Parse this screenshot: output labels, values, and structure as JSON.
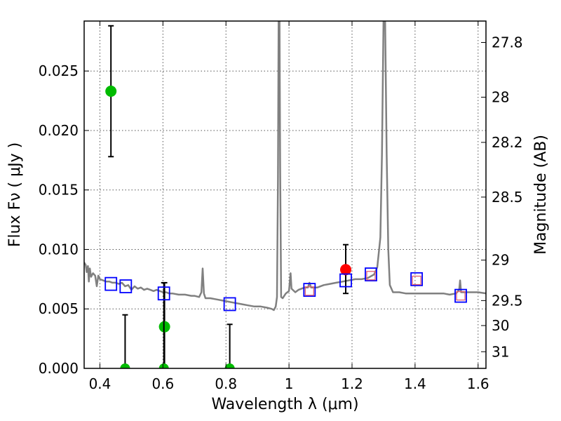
{
  "chart_data": {
    "type": "scatter",
    "xlabel": "Wavelength  λ (μm)",
    "ylabel": "Flux  Fν  ( μJy )",
    "y2label": "Magnitude (AB)",
    "xlim": [
      0.35,
      1.625
    ],
    "ylim": [
      0.0,
      0.0292
    ],
    "grid": true,
    "x_ticks": [
      0.4,
      0.6,
      0.8,
      1.0,
      1.2,
      1.4,
      1.6
    ],
    "x_tick_labels": [
      "0.4",
      "0.6",
      "0.8",
      "1",
      "1.2",
      "1.4",
      "1.6"
    ],
    "y_ticks": [
      0.0,
      0.005,
      0.01,
      0.015,
      0.02,
      0.025
    ],
    "y_tick_labels": [
      "0.000",
      "0.005",
      "0.010",
      "0.015",
      "0.020",
      "0.025"
    ],
    "y2_ticks": [
      {
        "label": "27.8",
        "flux": 0.0274
      },
      {
        "label": "28",
        "flux": 0.0228
      },
      {
        "label": "28.2",
        "flux": 0.019
      },
      {
        "label": "28.5",
        "flux": 0.0144
      },
      {
        "label": "29",
        "flux": 0.0091
      },
      {
        "label": "29.5",
        "flux": 0.0057
      },
      {
        "label": "30",
        "flux": 0.0036
      },
      {
        "label": "31",
        "flux": 0.0014
      }
    ],
    "colors": {
      "model": "#808080",
      "green": "#00bb00",
      "red": "#ff0000",
      "blue": "#0000ff",
      "pink": "#e06070",
      "errorbar": "#000000",
      "grid": "#555555"
    },
    "series": [
      {
        "name": "model spectrum",
        "kind": "line",
        "points": [
          [
            0.35,
            0.0089
          ],
          [
            0.355,
            0.0087
          ],
          [
            0.358,
            0.0081
          ],
          [
            0.362,
            0.0086
          ],
          [
            0.365,
            0.0073
          ],
          [
            0.368,
            0.0084
          ],
          [
            0.372,
            0.0077
          ],
          [
            0.378,
            0.008
          ],
          [
            0.385,
            0.0078
          ],
          [
            0.39,
            0.0069
          ],
          [
            0.395,
            0.0078
          ],
          [
            0.4,
            0.0075
          ],
          [
            0.41,
            0.0074
          ],
          [
            0.42,
            0.0073
          ],
          [
            0.43,
            0.0073
          ],
          [
            0.44,
            0.0072
          ],
          [
            0.45,
            0.0072
          ],
          [
            0.46,
            0.0071
          ],
          [
            0.47,
            0.0072
          ],
          [
            0.48,
            0.0069
          ],
          [
            0.49,
            0.007
          ],
          [
            0.5,
            0.0066
          ],
          [
            0.51,
            0.0069
          ],
          [
            0.52,
            0.0067
          ],
          [
            0.53,
            0.0068
          ],
          [
            0.54,
            0.0066
          ],
          [
            0.55,
            0.0067
          ],
          [
            0.56,
            0.0066
          ],
          [
            0.57,
            0.0065
          ],
          [
            0.58,
            0.0066
          ],
          [
            0.59,
            0.0065
          ],
          [
            0.6,
            0.0064
          ],
          [
            0.61,
            0.0064
          ],
          [
            0.62,
            0.0063
          ],
          [
            0.63,
            0.0063
          ],
          [
            0.65,
            0.0062
          ],
          [
            0.67,
            0.0062
          ],
          [
            0.69,
            0.0061
          ],
          [
            0.7,
            0.0061
          ],
          [
            0.715,
            0.006
          ],
          [
            0.722,
            0.0064
          ],
          [
            0.726,
            0.0084
          ],
          [
            0.73,
            0.0063
          ],
          [
            0.735,
            0.0059
          ],
          [
            0.75,
            0.0059
          ],
          [
            0.77,
            0.0058
          ],
          [
            0.79,
            0.0057
          ],
          [
            0.81,
            0.0056
          ],
          [
            0.83,
            0.0055
          ],
          [
            0.85,
            0.0054
          ],
          [
            0.87,
            0.0053
          ],
          [
            0.89,
            0.0052
          ],
          [
            0.91,
            0.0052
          ],
          [
            0.93,
            0.0051
          ],
          [
            0.945,
            0.005
          ],
          [
            0.952,
            0.0049
          ],
          [
            0.958,
            0.0052
          ],
          [
            0.962,
            0.006
          ],
          [
            0.965,
            0.016
          ],
          [
            0.967,
            0.0292
          ],
          [
            0.97,
            0.0292
          ],
          [
            0.972,
            0.017
          ],
          [
            0.975,
            0.006
          ],
          [
            0.98,
            0.0059
          ],
          [
            0.99,
            0.0063
          ],
          [
            1.0,
            0.0065
          ],
          [
            1.005,
            0.008
          ],
          [
            1.008,
            0.0067
          ],
          [
            1.02,
            0.0064
          ],
          [
            1.03,
            0.0066
          ],
          [
            1.05,
            0.0068
          ],
          [
            1.06,
            0.0068
          ],
          [
            1.065,
            0.0072
          ],
          [
            1.07,
            0.0068
          ],
          [
            1.09,
            0.0068
          ],
          [
            1.11,
            0.007
          ],
          [
            1.13,
            0.0071
          ],
          [
            1.15,
            0.0072
          ],
          [
            1.17,
            0.0073
          ],
          [
            1.19,
            0.0074
          ],
          [
            1.21,
            0.0075
          ],
          [
            1.23,
            0.0075
          ],
          [
            1.25,
            0.0076
          ],
          [
            1.27,
            0.0079
          ],
          [
            1.28,
            0.0085
          ],
          [
            1.29,
            0.011
          ],
          [
            1.295,
            0.018
          ],
          [
            1.3,
            0.0292
          ],
          [
            1.305,
            0.0292
          ],
          [
            1.31,
            0.018
          ],
          [
            1.315,
            0.01
          ],
          [
            1.32,
            0.007
          ],
          [
            1.33,
            0.0064
          ],
          [
            1.35,
            0.0064
          ],
          [
            1.37,
            0.0063
          ],
          [
            1.4,
            0.0063
          ],
          [
            1.43,
            0.0063
          ],
          [
            1.46,
            0.0063
          ],
          [
            1.49,
            0.0063
          ],
          [
            1.51,
            0.0062
          ],
          [
            1.53,
            0.0063
          ],
          [
            1.54,
            0.0066
          ],
          [
            1.543,
            0.0074
          ],
          [
            1.546,
            0.0064
          ],
          [
            1.56,
            0.0064
          ],
          [
            1.58,
            0.0064
          ],
          [
            1.6,
            0.0064
          ],
          [
            1.625,
            0.0063
          ]
        ]
      },
      {
        "name": "observed detections (green)",
        "kind": "points",
        "points": [
          {
            "x": 0.435,
            "y": 0.0233,
            "err_low": 0.0178,
            "err_high": 0.0288
          },
          {
            "x": 0.605,
            "y": 0.0035,
            "err_low": 0.0,
            "err_high": 0.0072
          }
        ]
      },
      {
        "name": "upper limits (green)",
        "kind": "limits",
        "points": [
          {
            "x": 0.48,
            "y": 0.0,
            "err_high": 0.0045
          },
          {
            "x": 0.603,
            "y": 0.0,
            "err_high": 0.0072
          },
          {
            "x": 0.812,
            "y": 0.0,
            "err_high": 0.0037
          }
        ]
      },
      {
        "name": "observed detection (red)",
        "kind": "points",
        "points": [
          {
            "x": 1.18,
            "y": 0.0083,
            "err_low": 0.0063,
            "err_high": 0.0104
          }
        ]
      },
      {
        "name": "model photometry (blue squares)",
        "kind": "squares",
        "points": [
          {
            "x": 0.435,
            "y": 0.0071
          },
          {
            "x": 0.482,
            "y": 0.0069
          },
          {
            "x": 0.603,
            "y": 0.0063
          },
          {
            "x": 0.812,
            "y": 0.0054
          },
          {
            "x": 1.065,
            "y": 0.0066
          },
          {
            "x": 1.18,
            "y": 0.0074
          },
          {
            "x": 1.26,
            "y": 0.0079
          },
          {
            "x": 1.405,
            "y": 0.0075
          },
          {
            "x": 1.545,
            "y": 0.0061
          }
        ]
      },
      {
        "name": "model photometry (pink squares)",
        "kind": "small-squares",
        "points": [
          {
            "x": 1.065,
            "y": 0.0065
          },
          {
            "x": 1.26,
            "y": 0.0078
          },
          {
            "x": 1.405,
            "y": 0.0074
          },
          {
            "x": 1.545,
            "y": 0.0061
          }
        ]
      }
    ]
  }
}
